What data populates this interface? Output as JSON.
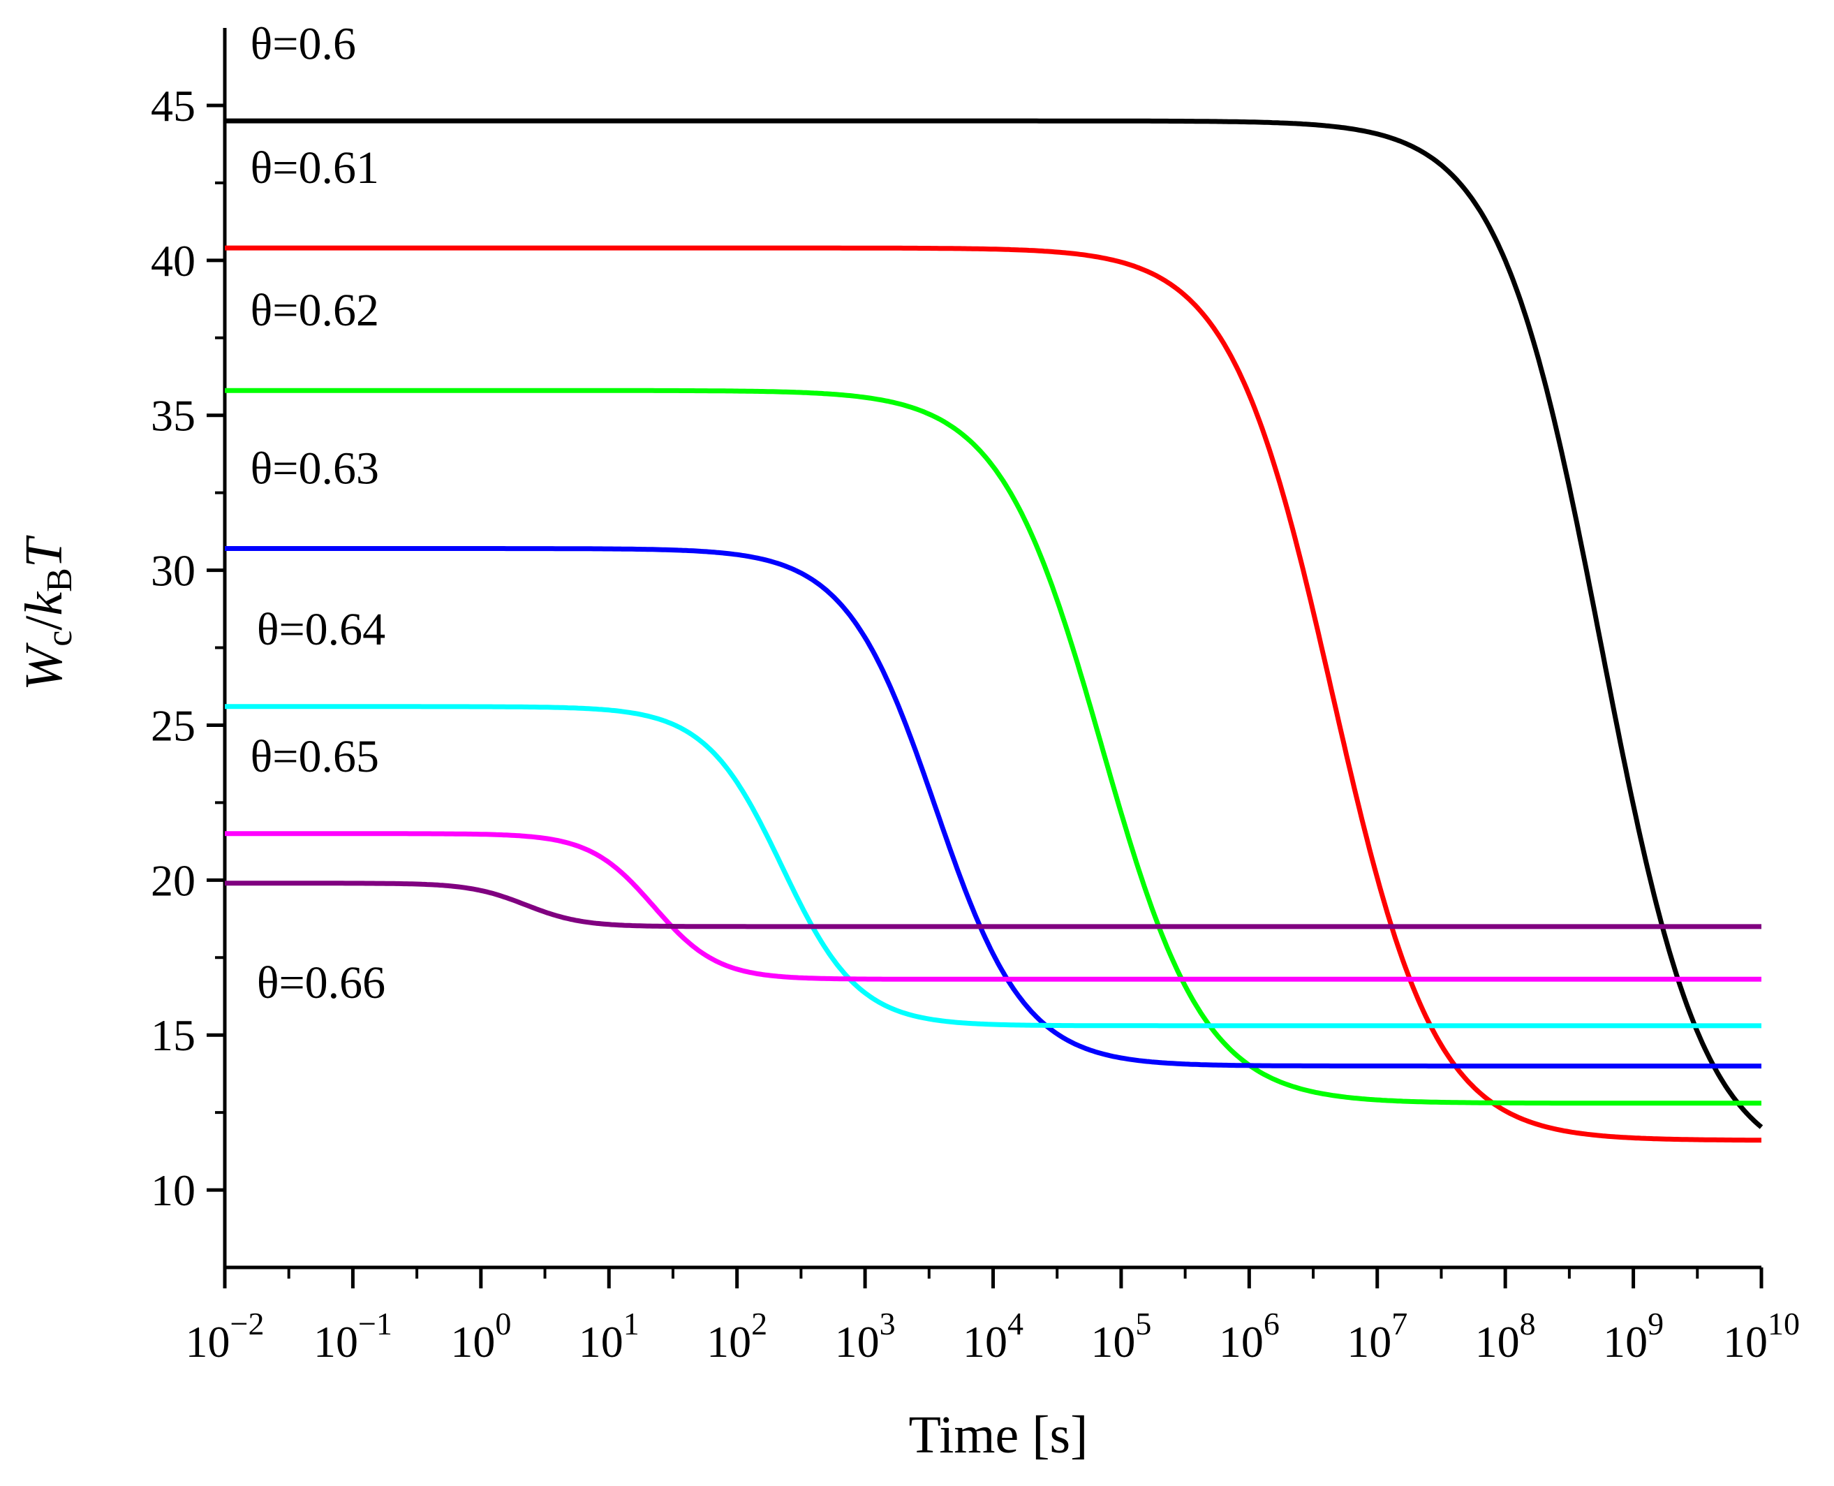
{
  "chart_data": {
    "type": "line",
    "title": "",
    "xlabel": "Time [s]",
    "ylabel": {
      "main": "W",
      "main_sub": "c",
      "sep": "/",
      "k": "k",
      "k_sub": "B",
      "t": "T"
    },
    "x_scale": "log10",
    "xlim_exp": [
      -2,
      10
    ],
    "ylim": [
      7.5,
      47.5
    ],
    "x_ticks": [
      {
        "base": "10",
        "exp": "−2",
        "e": -2
      },
      {
        "base": "10",
        "exp": "−1",
        "e": -1
      },
      {
        "base": "10",
        "exp": "0",
        "e": 0
      },
      {
        "base": "10",
        "exp": "1",
        "e": 1
      },
      {
        "base": "10",
        "exp": "2",
        "e": 2
      },
      {
        "base": "10",
        "exp": "3",
        "e": 3
      },
      {
        "base": "10",
        "exp": "4",
        "e": 4
      },
      {
        "base": "10",
        "exp": "5",
        "e": 5
      },
      {
        "base": "10",
        "exp": "6",
        "e": 6
      },
      {
        "base": "10",
        "exp": "7",
        "e": 7
      },
      {
        "base": "10",
        "exp": "8",
        "e": 8
      },
      {
        "base": "10",
        "exp": "9",
        "e": 9
      },
      {
        "base": "10",
        "exp": "10",
        "e": 10
      }
    ],
    "y_ticks": [
      {
        "label": "10",
        "v": 10
      },
      {
        "label": "15",
        "v": 15
      },
      {
        "label": "20",
        "v": 20
      },
      {
        "label": "25",
        "v": 25
      },
      {
        "label": "30",
        "v": 30
      },
      {
        "label": "35",
        "v": 35
      },
      {
        "label": "40",
        "v": 40
      },
      {
        "label": "45",
        "v": 45
      }
    ],
    "y_minor_ticks": [
      12.5,
      17.5,
      22.5,
      27.5,
      32.5,
      37.5,
      42.5
    ],
    "series": [
      {
        "name": "θ=0.6",
        "color": "#000000",
        "start": 44.5,
        "end": 10.6,
        "log_mid": 8.75,
        "width": 0.4,
        "label_at": [
          -1.8,
          46.5
        ]
      },
      {
        "name": "θ=0.61",
        "color": "#ff0000",
        "start": 40.4,
        "end": 11.6,
        "log_mid": 6.65,
        "width": 0.4,
        "label_at": [
          -1.8,
          42.5
        ]
      },
      {
        "name": "θ=0.62",
        "color": "#00ff00",
        "start": 35.8,
        "end": 12.8,
        "log_mid": 4.85,
        "width": 0.4,
        "label_at": [
          -1.8,
          37.9
        ]
      },
      {
        "name": "θ=0.63",
        "color": "#0000ff",
        "start": 30.7,
        "end": 14.0,
        "log_mid": 3.55,
        "width": 0.35,
        "label_at": [
          -1.8,
          32.8
        ]
      },
      {
        "name": "θ=0.64",
        "color": "#00ffff",
        "start": 25.6,
        "end": 15.3,
        "log_mid": 2.35,
        "width": 0.3,
        "label_at": [
          -1.75,
          27.6
        ]
      },
      {
        "name": "θ=0.65",
        "color": "#ff00ff",
        "start": 21.5,
        "end": 16.8,
        "log_mid": 1.35,
        "width": 0.25,
        "label_at": [
          -1.8,
          23.5
        ]
      },
      {
        "name": "θ=0.66",
        "color": "#800080",
        "start": 19.9,
        "end": 18.5,
        "log_mid": 0.35,
        "width": 0.22,
        "label_at": [
          -1.75,
          16.2
        ]
      }
    ]
  }
}
